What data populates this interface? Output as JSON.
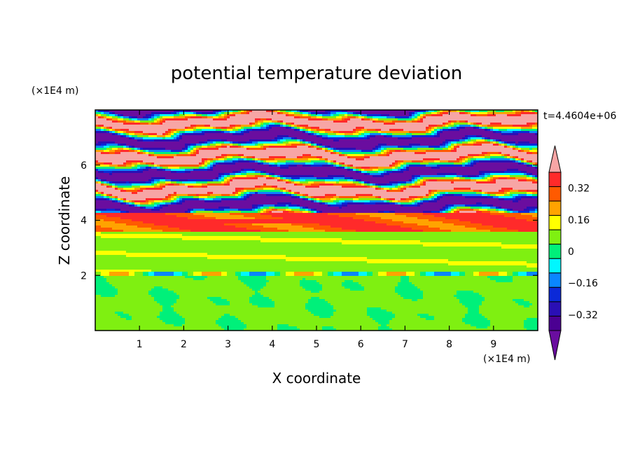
{
  "chart_data": {
    "type": "heatmap",
    "title": "potential temperature deviation",
    "xlabel": "X coordinate",
    "ylabel": "Z coordinate",
    "x_unit_label": "(×1E4 m)",
    "y_unit_label": "(×1E4 m)",
    "time_label": "t=4.4604e+06",
    "xlim": [
      0,
      10
    ],
    "ylim": [
      0,
      8
    ],
    "x_ticks": [
      "1",
      "2",
      "3",
      "4",
      "5",
      "6",
      "7",
      "8",
      "9"
    ],
    "y_ticks": [
      "2",
      "4",
      "6"
    ],
    "colorbar": {
      "tick_labels": [
        "0.32",
        "0.16",
        "0",
        "−0.16",
        "−0.32"
      ],
      "levels": [
        -0.4,
        -0.32,
        -0.24,
        -0.16,
        -0.08,
        0,
        0.08,
        0.16,
        0.24,
        0.32,
        0.4
      ],
      "colors": [
        "#4b0092",
        "#2a0fb5",
        "#0b29d8",
        "#0a86ff",
        "#00f7ff",
        "#00f07a",
        "#7ff011",
        "#ffff00",
        "#ffa300",
        "#ff5a00",
        "#ff2a2a",
        "#f7a5a5"
      ],
      "under_color": "#6a0d9f",
      "over_color": "#f7a5a5"
    },
    "field_description_bands": [
      {
        "z_range": [
          0,
          2.0
        ],
        "dominant_value": 0.02,
        "note": "green/teal mixed layer"
      },
      {
        "z_range": [
          2.0,
          3.6
        ],
        "dominant_value": 0.05,
        "note": "green banded"
      },
      {
        "z_range": [
          3.6,
          4.3
        ],
        "dominant_value": 0.3,
        "note": "orange/red band"
      },
      {
        "z_range": [
          4.3,
          8.0
        ],
        "dominant_value": 0.0,
        "note": "alternating purple (<-0.4) and pink (>0.4) layers"
      }
    ]
  }
}
